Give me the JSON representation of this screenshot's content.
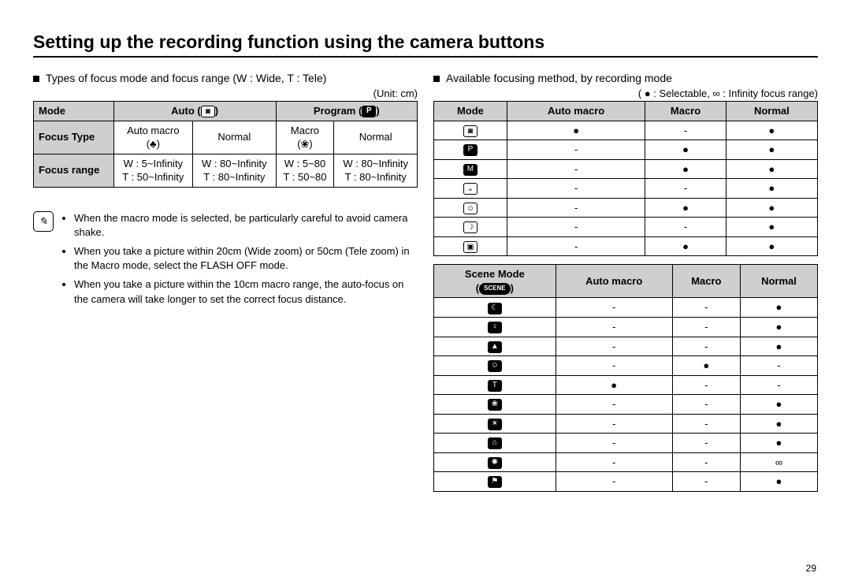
{
  "title": "Setting up the recording function using the camera buttons",
  "page_number": "29",
  "left": {
    "heading": "Types of focus mode and focus range (W : Wide, T : Tele)",
    "unit": "(Unit: cm)",
    "table": {
      "head": {
        "mode": "Mode",
        "auto": "Auto",
        "auto_icon": "◙",
        "program": "Program",
        "program_icon": "P"
      },
      "focus_type_label": "Focus Type",
      "focus_range_label": "Focus range",
      "auto_macro": "Auto macro",
      "auto_macro_icon": "(♣)",
      "normal1": "Normal",
      "macro": "Macro",
      "macro_icon": "(❀)",
      "normal2": "Normal",
      "r1": [
        "W : 5~Infinity",
        "W : 80~Infinity",
        "W : 5~80",
        "W : 80~Infinity"
      ],
      "r2": [
        "T  : 50~Infinity",
        "T  : 80~Infinity",
        "T  : 50~80",
        "T  : 80~Infinity"
      ]
    },
    "notes": [
      "When the macro mode is selected, be particularly careful to avoid camera shake.",
      "When you take a picture within 20cm (Wide zoom) or 50cm (Tele zoom) in the Macro mode, select the FLASH OFF mode.",
      "When you take a picture within the 10cm macro range, the auto-focus on the camera will take longer to set the correct focus distance."
    ]
  },
  "right": {
    "heading": "Available focusing method, by recording mode",
    "legend": "( ● : Selectable,  ∞ : Infinity focus range)",
    "table1": {
      "headers": [
        "Mode",
        "Auto macro",
        "Macro",
        "Normal"
      ],
      "rows": [
        {
          "icon": "◙",
          "style": "light",
          "cells": [
            "●",
            "-",
            "●"
          ]
        },
        {
          "icon": "P",
          "style": "dark",
          "cells": [
            "-",
            "●",
            "●"
          ]
        },
        {
          "icon": "M",
          "style": "dark",
          "cells": [
            "-",
            "●",
            "●"
          ]
        },
        {
          "icon": "⌄",
          "style": "light",
          "cells": [
            "-",
            "-",
            "●"
          ]
        },
        {
          "icon": "☺",
          "style": "light",
          "cells": [
            "-",
            "●",
            "●"
          ]
        },
        {
          "icon": "☽",
          "style": "light",
          "cells": [
            "-",
            "-",
            "●"
          ]
        },
        {
          "icon": "▣",
          "style": "light",
          "cells": [
            "-",
            "●",
            "●"
          ]
        }
      ]
    },
    "table2": {
      "headers": [
        "Scene Mode",
        "Auto macro",
        "Macro",
        "Normal"
      ],
      "scene_sub": "SCENE",
      "rows": [
        {
          "icon": "☾",
          "cells": [
            "-",
            "-",
            "●"
          ]
        },
        {
          "icon": "♀",
          "cells": [
            "-",
            "-",
            "●"
          ]
        },
        {
          "icon": "▲",
          "cells": [
            "-",
            "-",
            "●"
          ]
        },
        {
          "icon": "☺",
          "cells": [
            "-",
            "●",
            "-"
          ]
        },
        {
          "icon": "T",
          "cells": [
            "●",
            "-",
            "-"
          ]
        },
        {
          "icon": "❀",
          "cells": [
            "-",
            "-",
            "●"
          ]
        },
        {
          "icon": "☀",
          "cells": [
            "-",
            "-",
            "●"
          ]
        },
        {
          "icon": "⌂",
          "cells": [
            "-",
            "-",
            "●"
          ]
        },
        {
          "icon": "✺",
          "cells": [
            "-",
            "-",
            "∞"
          ]
        },
        {
          "icon": "⚑",
          "cells": [
            "-",
            "-",
            "●"
          ]
        }
      ]
    }
  }
}
